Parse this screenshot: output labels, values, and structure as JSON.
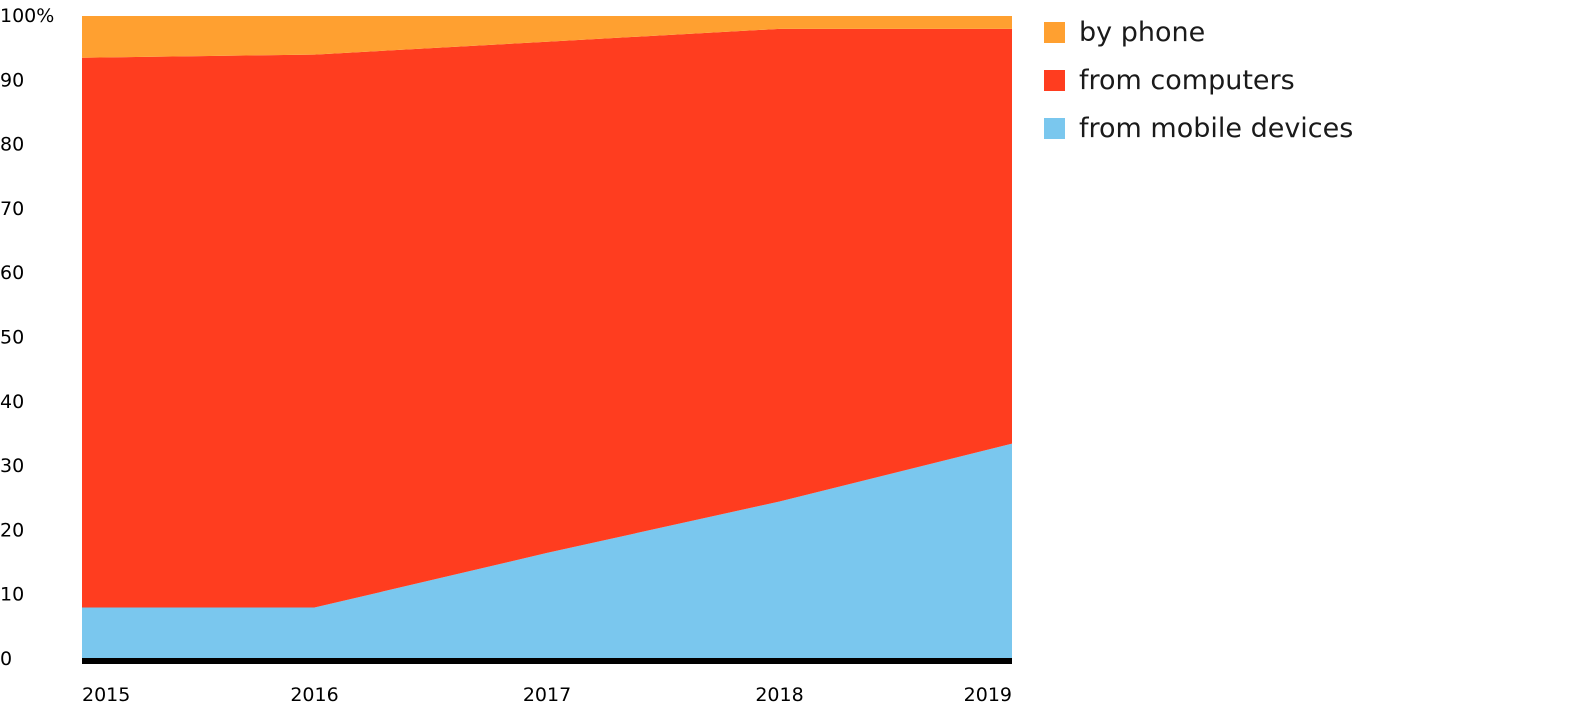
{
  "chart_data": {
    "type": "area",
    "stacked": true,
    "x": [
      "2015",
      "2016",
      "2017",
      "2018",
      "2019"
    ],
    "ylim": [
      0,
      100
    ],
    "y_ticks": [
      "0",
      "10",
      "20",
      "30",
      "40",
      "50",
      "60",
      "70",
      "80",
      "90",
      "100%"
    ],
    "grid": false,
    "legend_position": "top-right",
    "series": [
      {
        "name": "from mobile devices",
        "color": "#7ac7ee",
        "values": [
          8,
          8,
          16.5,
          24.5,
          33.5
        ]
      },
      {
        "name": "from computers",
        "color": "#ff3d1f",
        "values": [
          85.5,
          86,
          79.5,
          73.5,
          64.5
        ]
      },
      {
        "name": "by phone",
        "color": "#ffa030",
        "values": [
          6.5,
          6,
          4,
          2,
          2
        ]
      }
    ],
    "legend": [
      {
        "label": "by phone",
        "color": "#ffa030"
      },
      {
        "label": "from computers",
        "color": "#ff3d1f"
      },
      {
        "label": "from mobile devices",
        "color": "#7ac7ee"
      }
    ]
  }
}
